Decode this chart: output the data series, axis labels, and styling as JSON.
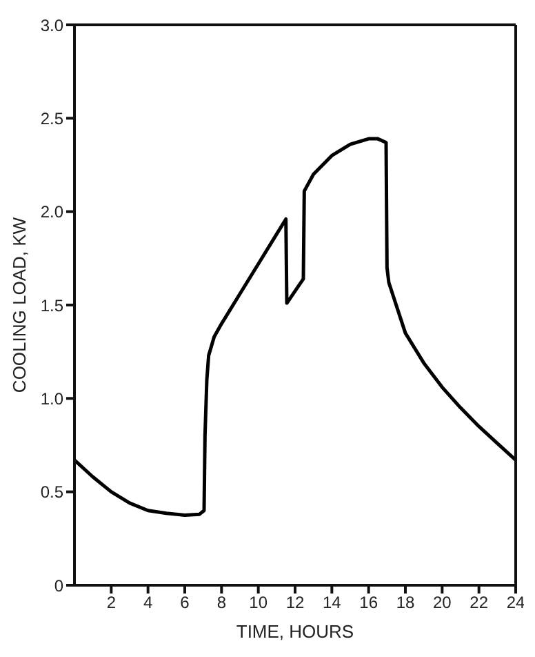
{
  "chart_data": {
    "type": "line",
    "xlabel": "TIME, HOURS",
    "ylabel": "COOLING LOAD, KW",
    "xlim": [
      0,
      24
    ],
    "xticks": [
      2,
      4,
      6,
      8,
      10,
      12,
      14,
      16,
      18,
      20,
      22,
      24
    ],
    "ylim": [
      0,
      3
    ],
    "yticks": [
      0,
      0.5,
      {
        "value": 1,
        "label": "1.0"
      },
      1.5,
      {
        "value": 2,
        "label": "2.0"
      },
      2.5,
      {
        "value": 3,
        "label": "3.0"
      }
    ],
    "marker": "none",
    "line_style": "solid",
    "series": [
      {
        "color": "#000000",
        "x": [
          0,
          1,
          2,
          3,
          4,
          5,
          6,
          6.8,
          7.05,
          7.1,
          7.2,
          7.3,
          7.6,
          8,
          9,
          10,
          11,
          11.5,
          11.55,
          12.45,
          12.5,
          13,
          14,
          15,
          16,
          16.5,
          16.95,
          17,
          17.1,
          17.5,
          18,
          19,
          20,
          21,
          22,
          23,
          24
        ],
        "values": [
          0.67,
          0.58,
          0.5,
          0.44,
          0.4,
          0.385,
          0.375,
          0.38,
          0.4,
          0.8,
          1.1,
          1.23,
          1.33,
          1.4,
          1.56,
          1.72,
          1.88,
          1.96,
          1.51,
          1.64,
          2.11,
          2.2,
          2.3,
          2.36,
          2.39,
          2.39,
          2.37,
          1.7,
          1.62,
          1.5,
          1.35,
          1.19,
          1.06,
          0.95,
          0.85,
          0.76,
          0.67
        ]
      }
    ]
  }
}
